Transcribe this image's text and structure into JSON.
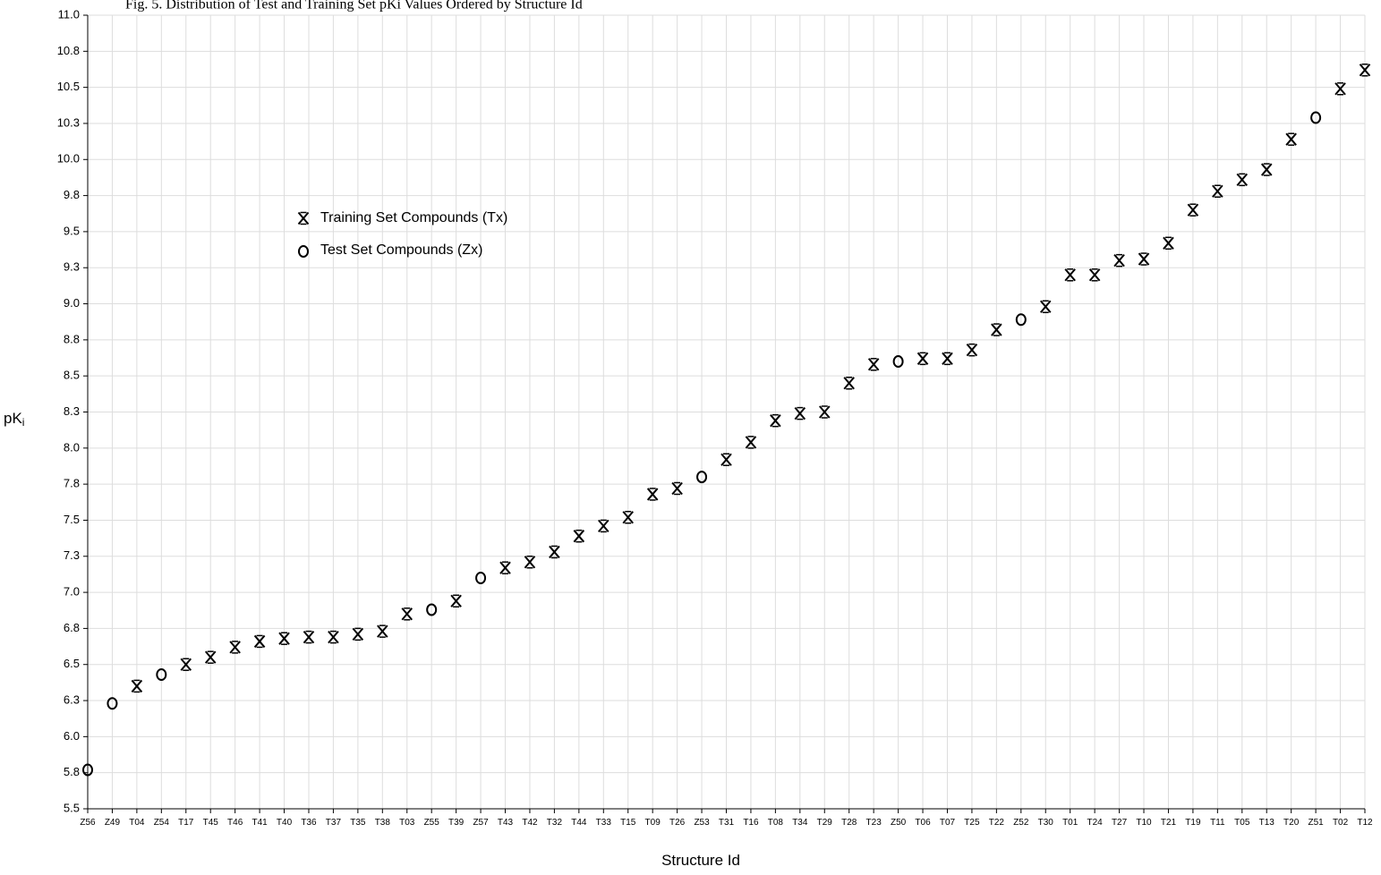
{
  "caption": "Fig. 5.  Distribution of Test and Training Set pKi Values Ordered by Structure Id",
  "chart_data": {
    "type": "scatter",
    "xlabel": "Structure Id",
    "ylabel": "pK",
    "ylabel_subscript": "i",
    "ylim": [
      5.5,
      11.0
    ],
    "yticks": [
      "5.5",
      "5.8",
      "6.0",
      "6.3",
      "6.5",
      "6.8",
      "7.0",
      "7.3",
      "7.5",
      "7.8",
      "8.0",
      "8.3",
      "8.5",
      "8.8",
      "9.0",
      "9.3",
      "9.5",
      "9.8",
      "10.0",
      "10.3",
      "10.5",
      "10.8",
      "11.0"
    ],
    "categories": [
      "Z56",
      "Z49",
      "T04",
      "Z54",
      "T17",
      "T45",
      "T46",
      "T41",
      "T40",
      "T36",
      "T37",
      "T35",
      "T38",
      "T03",
      "Z55",
      "T39",
      "Z57",
      "T43",
      "T42",
      "T32",
      "T44",
      "T33",
      "T15",
      "T09",
      "T26",
      "Z53",
      "T31",
      "T16",
      "T08",
      "T34",
      "T29",
      "T28",
      "T23",
      "Z50",
      "T06",
      "T07",
      "T25",
      "T22",
      "Z52",
      "T30",
      "T01",
      "T24",
      "T27",
      "T10",
      "T21",
      "T19",
      "T11",
      "T05",
      "T13",
      "T20",
      "Z51",
      "T02",
      "T12"
    ],
    "values": [
      5.77,
      6.23,
      6.35,
      6.43,
      6.5,
      6.55,
      6.62,
      6.66,
      6.68,
      6.69,
      6.69,
      6.71,
      6.73,
      6.85,
      6.88,
      6.94,
      7.1,
      7.17,
      7.21,
      7.28,
      7.39,
      7.46,
      7.52,
      7.68,
      7.72,
      7.8,
      7.92,
      8.04,
      8.19,
      8.24,
      8.25,
      8.45,
      8.58,
      8.6,
      8.62,
      8.62,
      8.68,
      8.82,
      8.89,
      8.98,
      9.2,
      9.2,
      9.3,
      9.31,
      9.42,
      9.65,
      9.78,
      9.86,
      9.93,
      10.14,
      10.29,
      10.49,
      10.62
    ],
    "series": [
      {
        "name": "Training Set Compounds (Tx)",
        "marker": "asterisk"
      },
      {
        "name": "Test Set Compounds (Zx)",
        "marker": "circle"
      }
    ],
    "legend_position": "upper-left",
    "grid": true
  }
}
